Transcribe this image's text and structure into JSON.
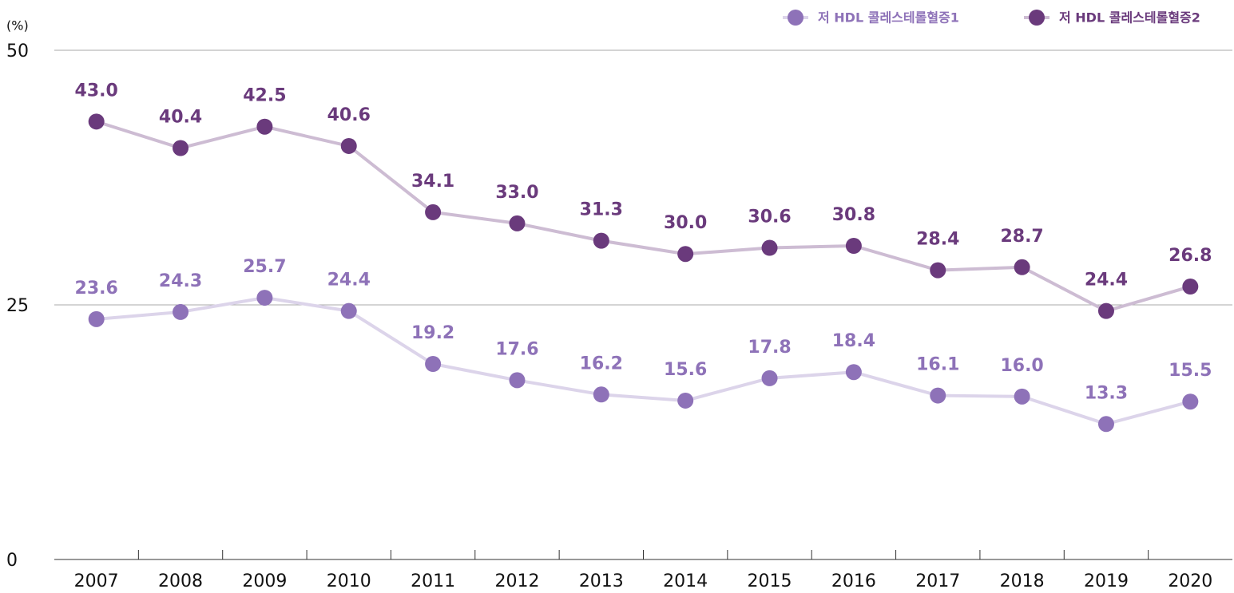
{
  "chart_data": {
    "type": "line",
    "y_label": "(%)",
    "categories": [
      "2007",
      "2008",
      "2009",
      "2010",
      "2011",
      "2012",
      "2013",
      "2014",
      "2015",
      "2016",
      "2017",
      "2018",
      "2019",
      "2020"
    ],
    "series": [
      {
        "name": "저 HDL 콜레스테롤혈증1",
        "color": "#8e72b8",
        "line_color": "#dcd4ea",
        "values": [
          23.6,
          24.3,
          25.7,
          24.4,
          19.2,
          17.6,
          16.2,
          15.6,
          17.8,
          18.4,
          16.1,
          16.0,
          13.3,
          15.5
        ],
        "value_labels": [
          "23.6",
          "24.3",
          "25.7",
          "24.4",
          "19.2",
          "17.6",
          "16.2",
          "15.6",
          "17.8",
          "18.4",
          "16.1",
          "16.0",
          "13.3",
          "15.5"
        ]
      },
      {
        "name": "저 HDL 콜레스테롤혈증2",
        "color": "#6a3a7c",
        "line_color": "#cdbcd3",
        "values": [
          43.0,
          40.4,
          42.5,
          40.6,
          34.1,
          33.0,
          31.3,
          30.0,
          30.6,
          30.8,
          28.4,
          28.7,
          24.4,
          26.8
        ],
        "value_labels": [
          "43.0",
          "40.4",
          "42.5",
          "40.6",
          "34.1",
          "33.0",
          "31.3",
          "30.0",
          "30.6",
          "30.8",
          "28.4",
          "28.7",
          "24.4",
          "26.8"
        ]
      }
    ],
    "ylim": [
      0,
      50
    ],
    "yticks": [
      0,
      25,
      50
    ],
    "grid": true,
    "legend": "top-right"
  }
}
